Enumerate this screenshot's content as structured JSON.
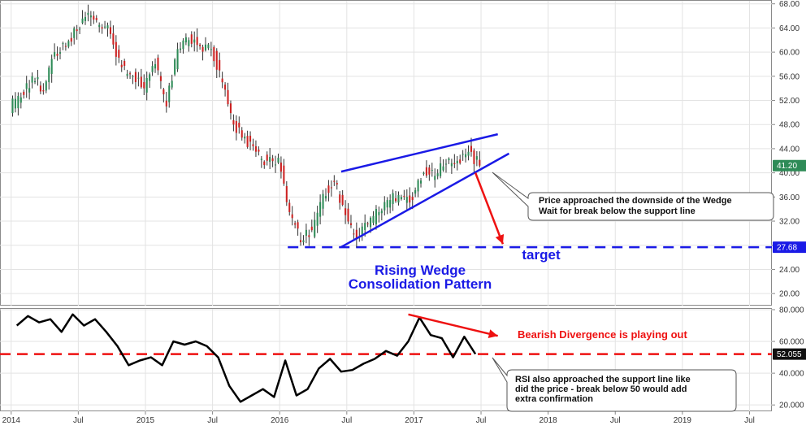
{
  "colors": {
    "up": "#2e8b57",
    "down": "#cc2222",
    "wick": "#333333",
    "wedge": "#1a1ae6",
    "target": "#1a1ae6",
    "arrow": "#ee1111",
    "rsi": "#000000",
    "rsi_support": "#ee1111",
    "price_badge": "#2e8b57",
    "target_badge": "#1a1ae6",
    "rsi_badge": "#111111",
    "grid": "#e3e3e3"
  },
  "x_axis": {
    "labels": [
      "2014",
      "Jul",
      "2015",
      "Jul",
      "2016",
      "Jul",
      "2017",
      "Jul",
      "2018",
      "Jul",
      "2019",
      "Jul"
    ]
  },
  "chart_data": [
    {
      "type": "candlestick",
      "title": "",
      "xlabel": "",
      "ylabel": "",
      "ylim": [
        18,
        68.5
      ],
      "x_range": [
        "2013-12",
        "2019-08"
      ],
      "y_ticks": [
        "68.00",
        "64.00",
        "60.00",
        "56.00",
        "52.00",
        "48.00",
        "44.00",
        "40.00",
        "36.00",
        "32.00",
        "28.00",
        "24.00",
        "20.00"
      ],
      "current_price": "41.20",
      "target_level": "27.68",
      "x": [
        "2014-01",
        "2014-02",
        "2014-03",
        "2014-04",
        "2014-05",
        "2014-06",
        "2014-07",
        "2014-08",
        "2014-09",
        "2014-10",
        "2014-11",
        "2014-12",
        "2015-01",
        "2015-02",
        "2015-03",
        "2015-04",
        "2015-05",
        "2015-06",
        "2015-07",
        "2015-08",
        "2015-09",
        "2015-10",
        "2015-11",
        "2015-12",
        "2016-01",
        "2016-02",
        "2016-03",
        "2016-04",
        "2016-05",
        "2016-06",
        "2016-07",
        "2016-08",
        "2016-09",
        "2016-10",
        "2016-11",
        "2016-12",
        "2017-01",
        "2017-02",
        "2017-03",
        "2017-04",
        "2017-05",
        "2017-06"
      ],
      "close": [
        52.5,
        56.0,
        53.5,
        60.0,
        61.0,
        63.5,
        66.5,
        64.5,
        63.0,
        57.5,
        56.0,
        54.0,
        58.0,
        51.0,
        60.5,
        62.0,
        61.0,
        60.5,
        55.0,
        48.0,
        46.0,
        43.5,
        42.0,
        42.5,
        33.5,
        28.5,
        30.5,
        36.5,
        38.5,
        33.0,
        29.0,
        31.5,
        33.5,
        35.5,
        36.0,
        35.5,
        40.0,
        39.5,
        41.5,
        42.0,
        43.5,
        41.2
      ],
      "wedge_resistance": [
        {
          "x": "2016-06",
          "y": 40.2
        },
        {
          "x": "2017-08",
          "y": 46.4
        }
      ],
      "wedge_support": [
        {
          "x": "2016-06",
          "y": 27.7
        },
        {
          "x": "2017-09",
          "y": 43.2
        }
      ],
      "projection_arrow": [
        {
          "x": "2017-06",
          "y": 40.0
        },
        {
          "x": "2017-07",
          "y": 28.2
        }
      ],
      "annotations": {
        "pattern_title": "Rising Wedge",
        "pattern_subtitle": "Consolidation Pattern",
        "target_label": "target",
        "note_line1": "Price approached the downside of the Wedge",
        "note_line2": "Wait for break below the support line"
      }
    },
    {
      "type": "line",
      "title": "",
      "xlabel": "",
      "ylabel": "",
      "ylim": [
        16,
        80.5
      ],
      "x_range": [
        "2013-12",
        "2019-08"
      ],
      "y_ticks": [
        "80.000",
        "60.000",
        "40.000",
        "20.000"
      ],
      "current_value": "52.055",
      "support_level": 52.055,
      "x": [
        "2014-01",
        "2014-02",
        "2014-03",
        "2014-04",
        "2014-05",
        "2014-06",
        "2014-07",
        "2014-08",
        "2014-09",
        "2014-10",
        "2014-11",
        "2014-12",
        "2015-01",
        "2015-02",
        "2015-03",
        "2015-04",
        "2015-05",
        "2015-06",
        "2015-07",
        "2015-08",
        "2015-09",
        "2015-10",
        "2015-11",
        "2015-12",
        "2016-01",
        "2016-02",
        "2016-03",
        "2016-04",
        "2016-05",
        "2016-06",
        "2016-07",
        "2016-08",
        "2016-09",
        "2016-10",
        "2016-11",
        "2016-12",
        "2017-01",
        "2017-02",
        "2017-03",
        "2017-04",
        "2017-05",
        "2017-06"
      ],
      "values": [
        70,
        76,
        72,
        74,
        66,
        77,
        70,
        74,
        66,
        57,
        45,
        48,
        50,
        45,
        60,
        58,
        60,
        57,
        50,
        32,
        22,
        26,
        30,
        25,
        48,
        26,
        30,
        43,
        49,
        41,
        42,
        46,
        49,
        54,
        51,
        60,
        75,
        64,
        62,
        50,
        63,
        52.1
      ],
      "divergence_arrow": [
        {
          "x": "2016-12",
          "y": 77.0
        },
        {
          "x": "2017-08",
          "y": 63.5
        }
      ],
      "annotations": {
        "divergence_label": "Bearish Divergence is playing out",
        "note_line1": "RSI also approached the support line like",
        "note_line2": "did the price - break below 50 would add",
        "note_line3": "extra confirmation"
      }
    }
  ]
}
